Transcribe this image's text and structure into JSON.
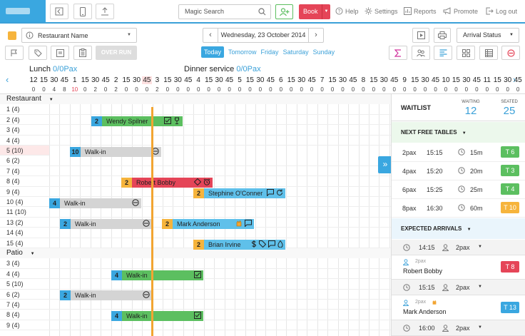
{
  "topbar": {
    "search_placeholder": "Magic Search",
    "book_label": "Book",
    "help": "Help",
    "settings": "Settings",
    "reports": "Reports",
    "promote": "Promote",
    "logout": "Log out"
  },
  "toolbar": {
    "restaurant": "Restaurant Name",
    "date": "Wednesday, 23 October 2014",
    "arrival_status": "Arrival Status",
    "overrun": "OVER RUN",
    "day_tabs": [
      "Today",
      "Tomorrow",
      "Friday",
      "Saturday",
      "Sunday"
    ]
  },
  "timeline": {
    "lunch_label": "Lunch",
    "lunch_pax": "0/0Pax",
    "dinner_label": "Dinner service",
    "dinner_pax": "0/0Pax",
    "ticks": [
      "12",
      "15",
      "30",
      "45",
      "1",
      "15",
      "30",
      "45",
      "2",
      "15",
      "30",
      "45",
      "3",
      "15",
      "30",
      "45",
      "4",
      "15",
      "30",
      "45",
      "5",
      "15",
      "30",
      "45",
      "6",
      "15",
      "30",
      "45",
      "7",
      "15",
      "30",
      "45",
      "8",
      "15",
      "30",
      "45",
      "9",
      "15",
      "30",
      "45",
      "10",
      "15",
      "30",
      "45",
      "11",
      "15",
      "30",
      "45"
    ],
    "counts": [
      "0",
      "0",
      "4",
      "8",
      "10",
      "0",
      "2",
      "0",
      "2",
      "0",
      "0",
      "0",
      "2",
      "0",
      "0",
      "0",
      "0",
      "0",
      "0",
      "0",
      "0",
      "0",
      "0",
      "0",
      "0",
      "0",
      "0",
      "0",
      "0",
      "0",
      "0",
      "0",
      "0",
      "0",
      "0",
      "0",
      "0",
      "0",
      "0",
      "0",
      "0",
      "0",
      "0",
      "0",
      "0",
      "0",
      "0",
      "0"
    ]
  },
  "sections": {
    "restaurant": "Restaurant",
    "patio": "Patio"
  },
  "tables": [
    {
      "label": "1  (4)"
    },
    {
      "label": "2  (4)"
    },
    {
      "label": "3  (4)"
    },
    {
      "label": "4  (4)"
    },
    {
      "label": "5  (10)"
    },
    {
      "label": "6  (2)"
    },
    {
      "label": "7  (4)"
    },
    {
      "label": "8  (4)"
    },
    {
      "label": "9  (4)"
    },
    {
      "label": "10  (4)"
    },
    {
      "label": "11  (10)"
    },
    {
      "label": "13  (2)"
    },
    {
      "label": "14  (4)"
    },
    {
      "label": "15  (4)"
    }
  ],
  "patio_tables": [
    {
      "label": "3  (4)"
    },
    {
      "label": "4  (4)"
    },
    {
      "label": "5  (10)"
    },
    {
      "label": "6  (2)"
    },
    {
      "label": "7  (4)"
    },
    {
      "label": "8  (4)"
    },
    {
      "label": "9  (4)"
    }
  ],
  "reservations": [
    {
      "num": "2",
      "name": "Wendy Spilner"
    },
    {
      "num": "10",
      "name": "Walk-in"
    },
    {
      "num": "2",
      "name": "Robert Bobby"
    },
    {
      "num": "2",
      "name": "Stephine O'Conner"
    },
    {
      "num": "4",
      "name": "Walk-in"
    },
    {
      "num": "2",
      "name": "Walk-in"
    },
    {
      "num": "2",
      "name": "Mark Anderson"
    },
    {
      "num": "2",
      "name": "Brian Irvine"
    },
    {
      "num": "4",
      "name": "Walk-in"
    },
    {
      "num": "2",
      "name": "Walk-in"
    },
    {
      "num": "4",
      "name": "Walk-in"
    }
  ],
  "panel": {
    "waitlist": "WAITLIST",
    "waiting_label": "WAITING",
    "waiting": "12",
    "seated_label": "SEATED",
    "seated": "25",
    "next_free": "NEXT FREE TABLES",
    "free_tables": [
      {
        "pax": "2pax",
        "time": "15:15",
        "wait": "15m",
        "table": "T 6",
        "color": "#5cbf60"
      },
      {
        "pax": "4pax",
        "time": "15:20",
        "wait": "20m",
        "table": "T 3",
        "color": "#5cbf60"
      },
      {
        "pax": "6pax",
        "time": "15:25",
        "wait": "25m",
        "table": "T 4",
        "color": "#5cbf60"
      },
      {
        "pax": "8pax",
        "time": "16:30",
        "wait": "60m",
        "table": "T 10",
        "color": "#f6b43c"
      }
    ],
    "expected": "EXPECTED ARRIVALS",
    "arrivals": [
      {
        "time": "14:15",
        "pax": "2pax",
        "guest_pax": "2pax",
        "name": "Robert Bobby",
        "table": "T 8",
        "color": "#e54558"
      },
      {
        "time": "15:15",
        "pax": "2pax",
        "guest_pax": "2pax",
        "name": "Mark Anderson",
        "table": "T 13",
        "color": "#3aa7e0"
      },
      {
        "time": "16:00",
        "pax": "2pax"
      }
    ]
  },
  "colors": {
    "accent": "#3aa7e0",
    "green": "#5cbf60",
    "red": "#e54558",
    "yellow": "#f6b43c",
    "grey": "#d4d4d4"
  }
}
